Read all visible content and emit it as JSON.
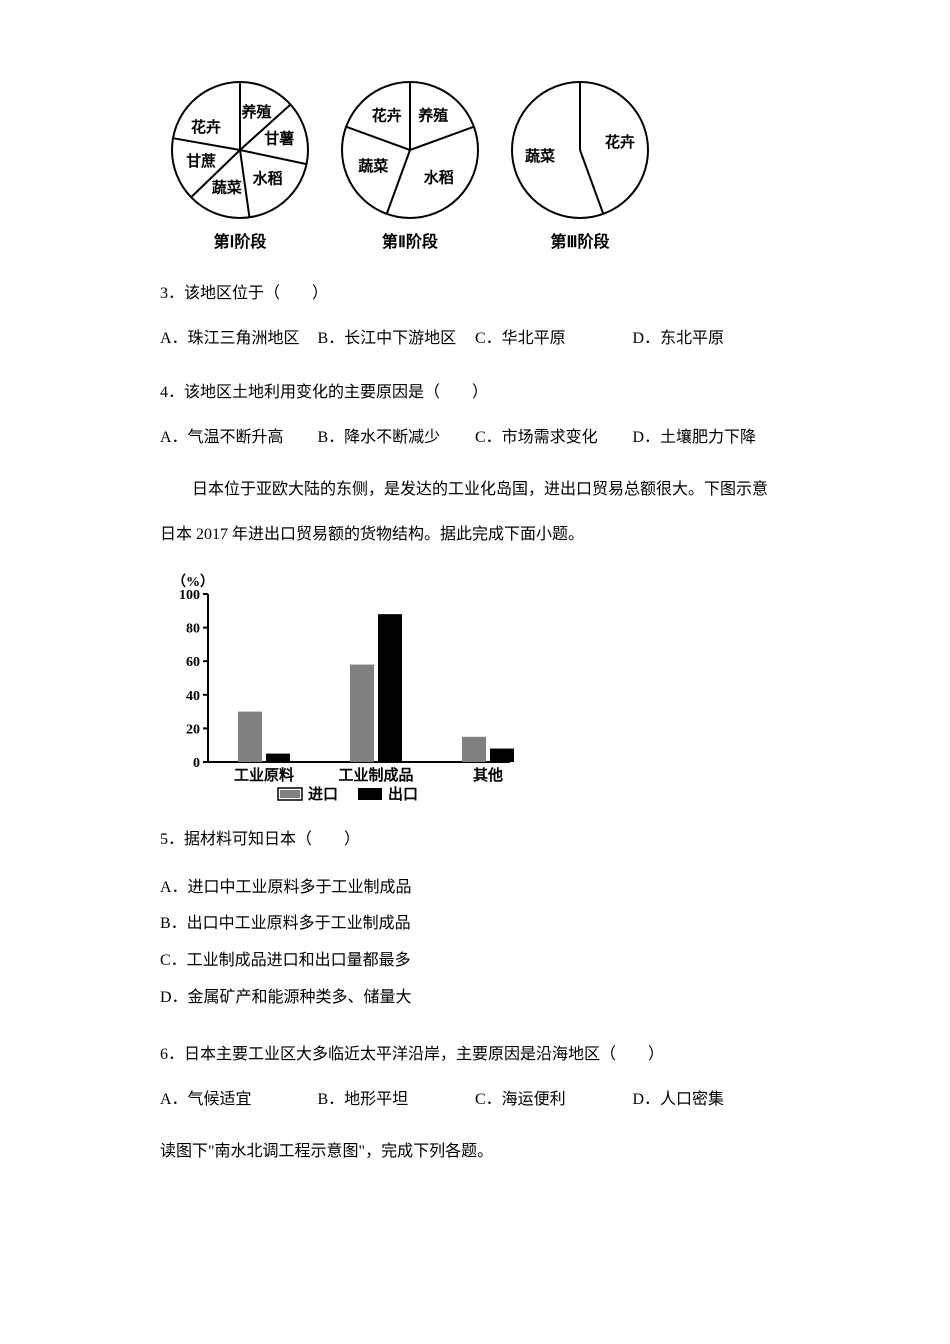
{
  "pieCharts": [
    {
      "slices": [
        {
          "label": "养殖",
          "angle": 48
        },
        {
          "label": "甘薯",
          "angle": 54
        },
        {
          "label": "水稻",
          "angle": 70
        },
        {
          "label": "蔬菜",
          "angle": 54
        },
        {
          "label": "甘蔗",
          "angle": 54
        },
        {
          "label": "花卉",
          "angle": 46
        }
      ],
      "caption": "第Ⅰ阶段",
      "radius": 70,
      "strokeWidth": 2
    },
    {
      "slices": [
        {
          "label": "养殖",
          "angle": 70
        },
        {
          "label": "水稻",
          "angle": 130
        },
        {
          "label": "蔬菜",
          "angle": 90
        },
        {
          "label": "花卉",
          "angle": 70
        }
      ],
      "caption": "第Ⅱ阶段",
      "radius": 70,
      "strokeWidth": 2
    },
    {
      "slices": [
        {
          "label": "花卉",
          "angle": 160
        },
        {
          "label": "蔬菜",
          "angle": 200
        }
      ],
      "caption": "第Ⅲ阶段",
      "radius": 70,
      "strokeWidth": 2
    }
  ],
  "q3": {
    "text": "3．该地区位于（　　）",
    "options": {
      "A": "A．珠江三角洲地区",
      "B": "B．长江中下游地区",
      "C": "C．华北平原",
      "D": "D．东北平原"
    }
  },
  "q4": {
    "text": "4．该地区土地利用变化的主要原因是（　　）",
    "options": {
      "A": "A．气温不断升高",
      "B": "B．降水不断减少",
      "C": "C．市场需求变化",
      "D": "D．土壤肥力下降"
    }
  },
  "intro1": {
    "line1": "日本位于亚欧大陆的东侧，是发达的工业化岛国，进出口贸易总额很大。下图示意",
    "line2": "日本 2017 年进出口贸易额的货物结构。据此完成下面小题。"
  },
  "barChart": {
    "yLabel": "（%）",
    "yticks": [
      0,
      20,
      40,
      60,
      80,
      100
    ],
    "categories": [
      "工业原料",
      "工业制成品",
      "其他"
    ],
    "series": [
      {
        "name": "进口",
        "fill": "#808080",
        "values": [
          30,
          58,
          15
        ]
      },
      {
        "name": "出口",
        "fill": "#000000",
        "values": [
          5,
          88,
          8
        ]
      }
    ],
    "legend": {
      "import": "进口",
      "export": "出口"
    },
    "axisColor": "#000000",
    "fontSize": 14,
    "barWidth": 24,
    "groupGap": 60,
    "chartLeft": 48,
    "chartBottom": 190,
    "chartTop": 22,
    "chartRight": 350
  },
  "q5": {
    "text": "5．据材料可知日本（　　）",
    "options": {
      "A": "A．进口中工业原料多于工业制成品",
      "B": "B．出口中工业原料多于工业制成品",
      "C": "C．工业制成品进口和出口量都最多",
      "D": "D．金属矿产和能源种类多、储量大"
    }
  },
  "q6": {
    "text": "6．日本主要工业区大多临近太平洋沿岸，主要原因是沿海地区（　　）",
    "options": {
      "A": "A．气候适宜",
      "B": "B．地形平坦",
      "C": "C．海运便利",
      "D": "D．人口密集"
    }
  },
  "intro2": "读图下\"南水北调工程示意图\"，完成下列各题。",
  "colors": {
    "text": "#000000",
    "background": "#ffffff"
  }
}
